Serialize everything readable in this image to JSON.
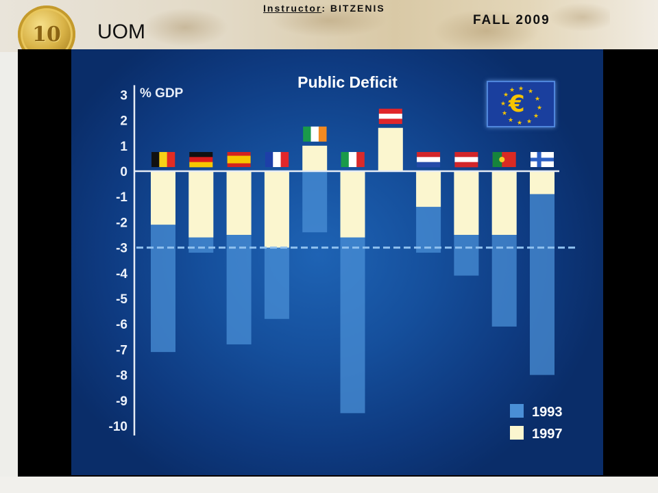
{
  "header": {
    "coin_text": "10",
    "org": "UOM",
    "instructor_label": "Instructor",
    "instructor_name": ": BITZENIS",
    "term": "FALL 2009"
  },
  "colors": {
    "bar_1993": "#4a8fd6",
    "bar_1997": "#fbf6cf",
    "axis": "#e6ecf5",
    "reference_line": "#8fc0ee"
  },
  "chart_data": {
    "type": "bar",
    "title": "Public Deficit",
    "ylabel": "% GDP",
    "ylim": [
      -10,
      3
    ],
    "yticks": [
      3,
      2,
      1,
      0,
      -1,
      -2,
      -3,
      -4,
      -5,
      -6,
      -7,
      -8,
      -9,
      -10
    ],
    "reference_value": -3,
    "categories": [
      "Belgium",
      "Germany",
      "Spain",
      "France",
      "Ireland",
      "Italy",
      "Luxembourg",
      "Netherlands",
      "Austria",
      "Portugal",
      "Finland"
    ],
    "flag_icons": [
      "belgium-flag-icon",
      "germany-flag-icon",
      "spain-flag-icon",
      "france-flag-icon",
      "ireland-flag-icon",
      "italy-flag-icon",
      "luxembourg-flag-icon",
      "netherlands-flag-icon",
      "austria-flag-icon",
      "portugal-flag-icon",
      "finland-flag-icon"
    ],
    "series": [
      {
        "name": "1993",
        "values": [
          -7.1,
          -3.2,
          -6.8,
          -5.8,
          -2.4,
          -9.5,
          1.7,
          -3.2,
          -4.1,
          -6.1,
          -8.0
        ]
      },
      {
        "name": "1997",
        "values": [
          -2.1,
          -2.6,
          -2.5,
          -3.0,
          1.0,
          -2.6,
          1.7,
          -1.4,
          -2.5,
          -2.5,
          -0.9
        ]
      }
    ],
    "legend": {
      "position": "bottom-right",
      "entries": [
        "1993",
        "1997"
      ]
    },
    "grid": false
  }
}
